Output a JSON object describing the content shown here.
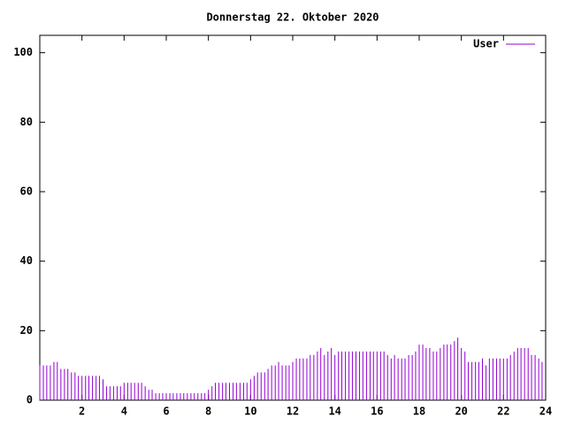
{
  "chart_data": {
    "type": "impulse",
    "title": "Donnerstag 22. Oktober 2020",
    "x": [
      0,
      0.17,
      0.33,
      0.5,
      0.67,
      0.83,
      1,
      1.17,
      1.33,
      1.5,
      1.67,
      1.83,
      2,
      2.17,
      2.33,
      2.5,
      2.67,
      2.83,
      3,
      3.17,
      3.33,
      3.5,
      3.67,
      3.83,
      4,
      4.17,
      4.33,
      4.5,
      4.67,
      4.83,
      5,
      5.17,
      5.33,
      5.5,
      5.67,
      5.83,
      6,
      6.17,
      6.33,
      6.5,
      6.67,
      6.83,
      7,
      7.17,
      7.33,
      7.5,
      7.67,
      7.83,
      8,
      8.17,
      8.33,
      8.5,
      8.67,
      8.83,
      9,
      9.17,
      9.33,
      9.5,
      9.67,
      9.83,
      10,
      10.17,
      10.33,
      10.5,
      10.67,
      10.83,
      11,
      11.17,
      11.33,
      11.5,
      11.67,
      11.83,
      12,
      12.17,
      12.33,
      12.5,
      12.67,
      12.83,
      13,
      13.17,
      13.33,
      13.5,
      13.67,
      13.83,
      14,
      14.17,
      14.33,
      14.5,
      14.67,
      14.83,
      15,
      15.17,
      15.33,
      15.5,
      15.67,
      15.83,
      16,
      16.17,
      16.33,
      16.5,
      16.67,
      16.83,
      17,
      17.17,
      17.33,
      17.5,
      17.67,
      17.83,
      18,
      18.17,
      18.33,
      18.5,
      18.67,
      18.83,
      19,
      19.17,
      19.33,
      19.5,
      19.67,
      19.83,
      20,
      20.17,
      20.33,
      20.5,
      20.67,
      20.83,
      21,
      21.17,
      21.33,
      21.5,
      21.67,
      21.83,
      22,
      22.17,
      22.33,
      22.5,
      22.67,
      22.83,
      23,
      23.17,
      23.33,
      23.5,
      23.67,
      23.83
    ],
    "series": [
      {
        "name": "User",
        "color": "#9400d3",
        "values": [
          10,
          10,
          10,
          10,
          11,
          11,
          9,
          9,
          9,
          8,
          8,
          7,
          7,
          7,
          7,
          7,
          7,
          7,
          6,
          4,
          4,
          4,
          4,
          4,
          5,
          5,
          5,
          5,
          5,
          5,
          4,
          3,
          3,
          2,
          2,
          2,
          2,
          2,
          2,
          2,
          2,
          2,
          2,
          2,
          2,
          2,
          2,
          2,
          3,
          4,
          5,
          5,
          5,
          5,
          5,
          5,
          5,
          5,
          5,
          5,
          6,
          7,
          8,
          8,
          8,
          9,
          10,
          10,
          11,
          10,
          10,
          10,
          11,
          12,
          12,
          12,
          12,
          13,
          13,
          14,
          15,
          13,
          14,
          15,
          13,
          14,
          14,
          14,
          14,
          14,
          14,
          14,
          14,
          14,
          14,
          14,
          14,
          14,
          14,
          13,
          12,
          13,
          12,
          12,
          12,
          13,
          13,
          14,
          16,
          16,
          15,
          15,
          14,
          14,
          15,
          16,
          16,
          16,
          17,
          18,
          15,
          14,
          11,
          11,
          11,
          11,
          12,
          10,
          12,
          12,
          12,
          12,
          12,
          12,
          13,
          14,
          15,
          15,
          15,
          15,
          13,
          13,
          12,
          11
        ]
      }
    ],
    "xlim": [
      0,
      24
    ],
    "xticks": [
      2,
      4,
      6,
      8,
      10,
      12,
      14,
      16,
      18,
      20,
      22,
      24
    ],
    "ylim": [
      0,
      105
    ],
    "yticks": [
      0,
      20,
      40,
      60,
      80,
      100
    ],
    "legend": "upper right"
  }
}
